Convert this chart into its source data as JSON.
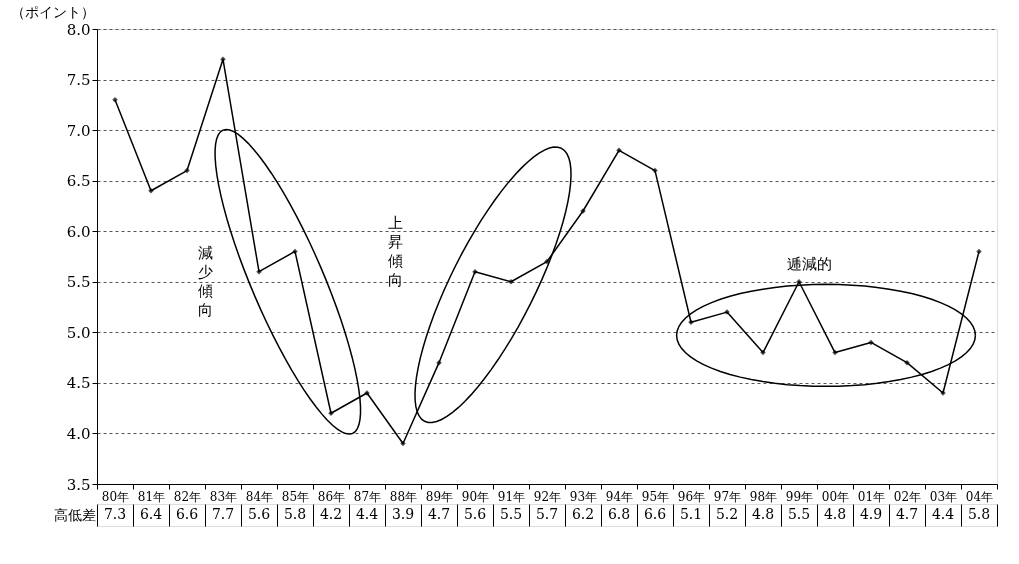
{
  "chart_data": {
    "type": "line",
    "ylabel": "（ポイント）",
    "categories": [
      "80年",
      "81年",
      "82年",
      "83年",
      "84年",
      "85年",
      "86年",
      "87年",
      "88年",
      "89年",
      "90年",
      "91年",
      "92年",
      "93年",
      "94年",
      "95年",
      "96年",
      "97年",
      "98年",
      "99年",
      "00年",
      "01年",
      "02年",
      "03年",
      "04年"
    ],
    "series": [
      {
        "name": "高低差",
        "color": "#000000",
        "values": [
          7.3,
          6.4,
          6.6,
          7.7,
          5.6,
          5.8,
          4.2,
          4.4,
          3.9,
          4.7,
          5.6,
          5.5,
          5.7,
          6.2,
          6.8,
          6.6,
          5.1,
          5.2,
          4.8,
          5.5,
          4.8,
          4.9,
          4.7,
          4.4,
          5.8
        ]
      }
    ],
    "ylim": [
      3.5,
      8.0
    ],
    "yticks": [
      3.5,
      {
        "value": 4,
        "label": "4.0"
      },
      4.5,
      {
        "value": 5,
        "label": "5.0"
      },
      5.5,
      {
        "value": 6,
        "label": "6.0"
      },
      6.5,
      {
        "value": 7,
        "label": "7.0"
      },
      7.5,
      {
        "value": 8,
        "label": "8.0"
      }
    ],
    "grid": "y",
    "marker": "diamond",
    "line_style": "solid",
    "data_labels": true,
    "annotations": [
      "減少傾向",
      "上昇傾向",
      "逓減的"
    ]
  }
}
